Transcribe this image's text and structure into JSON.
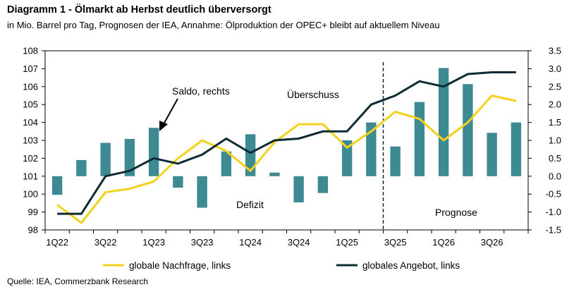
{
  "header": {
    "title": "Diagramm 1 - Ölmarkt ab Herbst deutlich überversorgt",
    "subtitle": "in Mio. Barrel pro Tag, Prognosen der IEA, Annahme: Ölproduktion der OPEC+ bleibt auf aktuellem Niveau"
  },
  "footer": {
    "source": "Quelle: IEA, Commerzbank Research"
  },
  "chart_data": {
    "type": "bar",
    "quarters": [
      "1Q22",
      "2Q22",
      "3Q22",
      "4Q22",
      "1Q23",
      "2Q23",
      "3Q23",
      "4Q23",
      "1Q24",
      "2Q24",
      "3Q24",
      "4Q24",
      "1Q25",
      "2Q25",
      "3Q25",
      "4Q25",
      "1Q26",
      "2Q26",
      "3Q26",
      "4Q26"
    ],
    "xtick_labels": [
      "1Q22",
      "3Q22",
      "1Q23",
      "3Q23",
      "1Q24",
      "3Q24",
      "1Q25",
      "3Q25",
      "1Q26",
      "3Q26"
    ],
    "y_left": {
      "min": 98,
      "max": 108,
      "ticks": [
        "98",
        "99",
        "100",
        "101",
        "102",
        "103",
        "104",
        "105",
        "106",
        "107",
        "108"
      ]
    },
    "y_right": {
      "min": -1.5,
      "max": 3.5,
      "ticks": [
        "-1.5",
        "-1.0",
        "-0.5",
        "0.0",
        "0.5",
        "1.0",
        "1.5",
        "2.0",
        "2.5",
        "3.0",
        "3.5"
      ]
    },
    "series": [
      {
        "name": "Saldo",
        "kind": "bar",
        "axis": "right",
        "color": "#3d8a93",
        "values": [
          -0.52,
          0.45,
          0.93,
          1.04,
          1.35,
          -0.32,
          -0.88,
          0.69,
          1.17,
          0.1,
          -0.73,
          -0.47,
          1.0,
          1.5,
          0.83,
          2.07,
          3.02,
          2.57,
          1.21,
          1.5
        ]
      },
      {
        "name": "globale Nachfrage, links",
        "kind": "line",
        "axis": "left",
        "color": "#f3d11c",
        "values": [
          99.4,
          98.4,
          100.1,
          100.3,
          100.7,
          102.0,
          103.0,
          102.4,
          101.3,
          102.9,
          103.9,
          103.9,
          102.6,
          103.5,
          104.6,
          104.2,
          103.0,
          104.0,
          105.5,
          105.2
        ]
      },
      {
        "name": "globales Angebot, links",
        "kind": "line",
        "axis": "left",
        "color": "#0e2b33",
        "values": [
          98.9,
          98.9,
          101.0,
          101.3,
          102.0,
          101.7,
          102.2,
          103.1,
          102.3,
          103.0,
          103.1,
          103.5,
          103.5,
          105.0,
          105.5,
          106.3,
          106.0,
          106.7,
          106.8,
          106.8
        ]
      }
    ],
    "annotations": {
      "saldo": "Saldo, rechts",
      "surplus": "Überschuss",
      "deficit": "Defizit",
      "forecast": "Prognose"
    },
    "forecast_start_after": "2Q25",
    "legend": {
      "position": "bottom",
      "items": [
        {
          "label": "globale Nachfrage, links"
        },
        {
          "label": "globales Angebot, links"
        }
      ]
    }
  }
}
